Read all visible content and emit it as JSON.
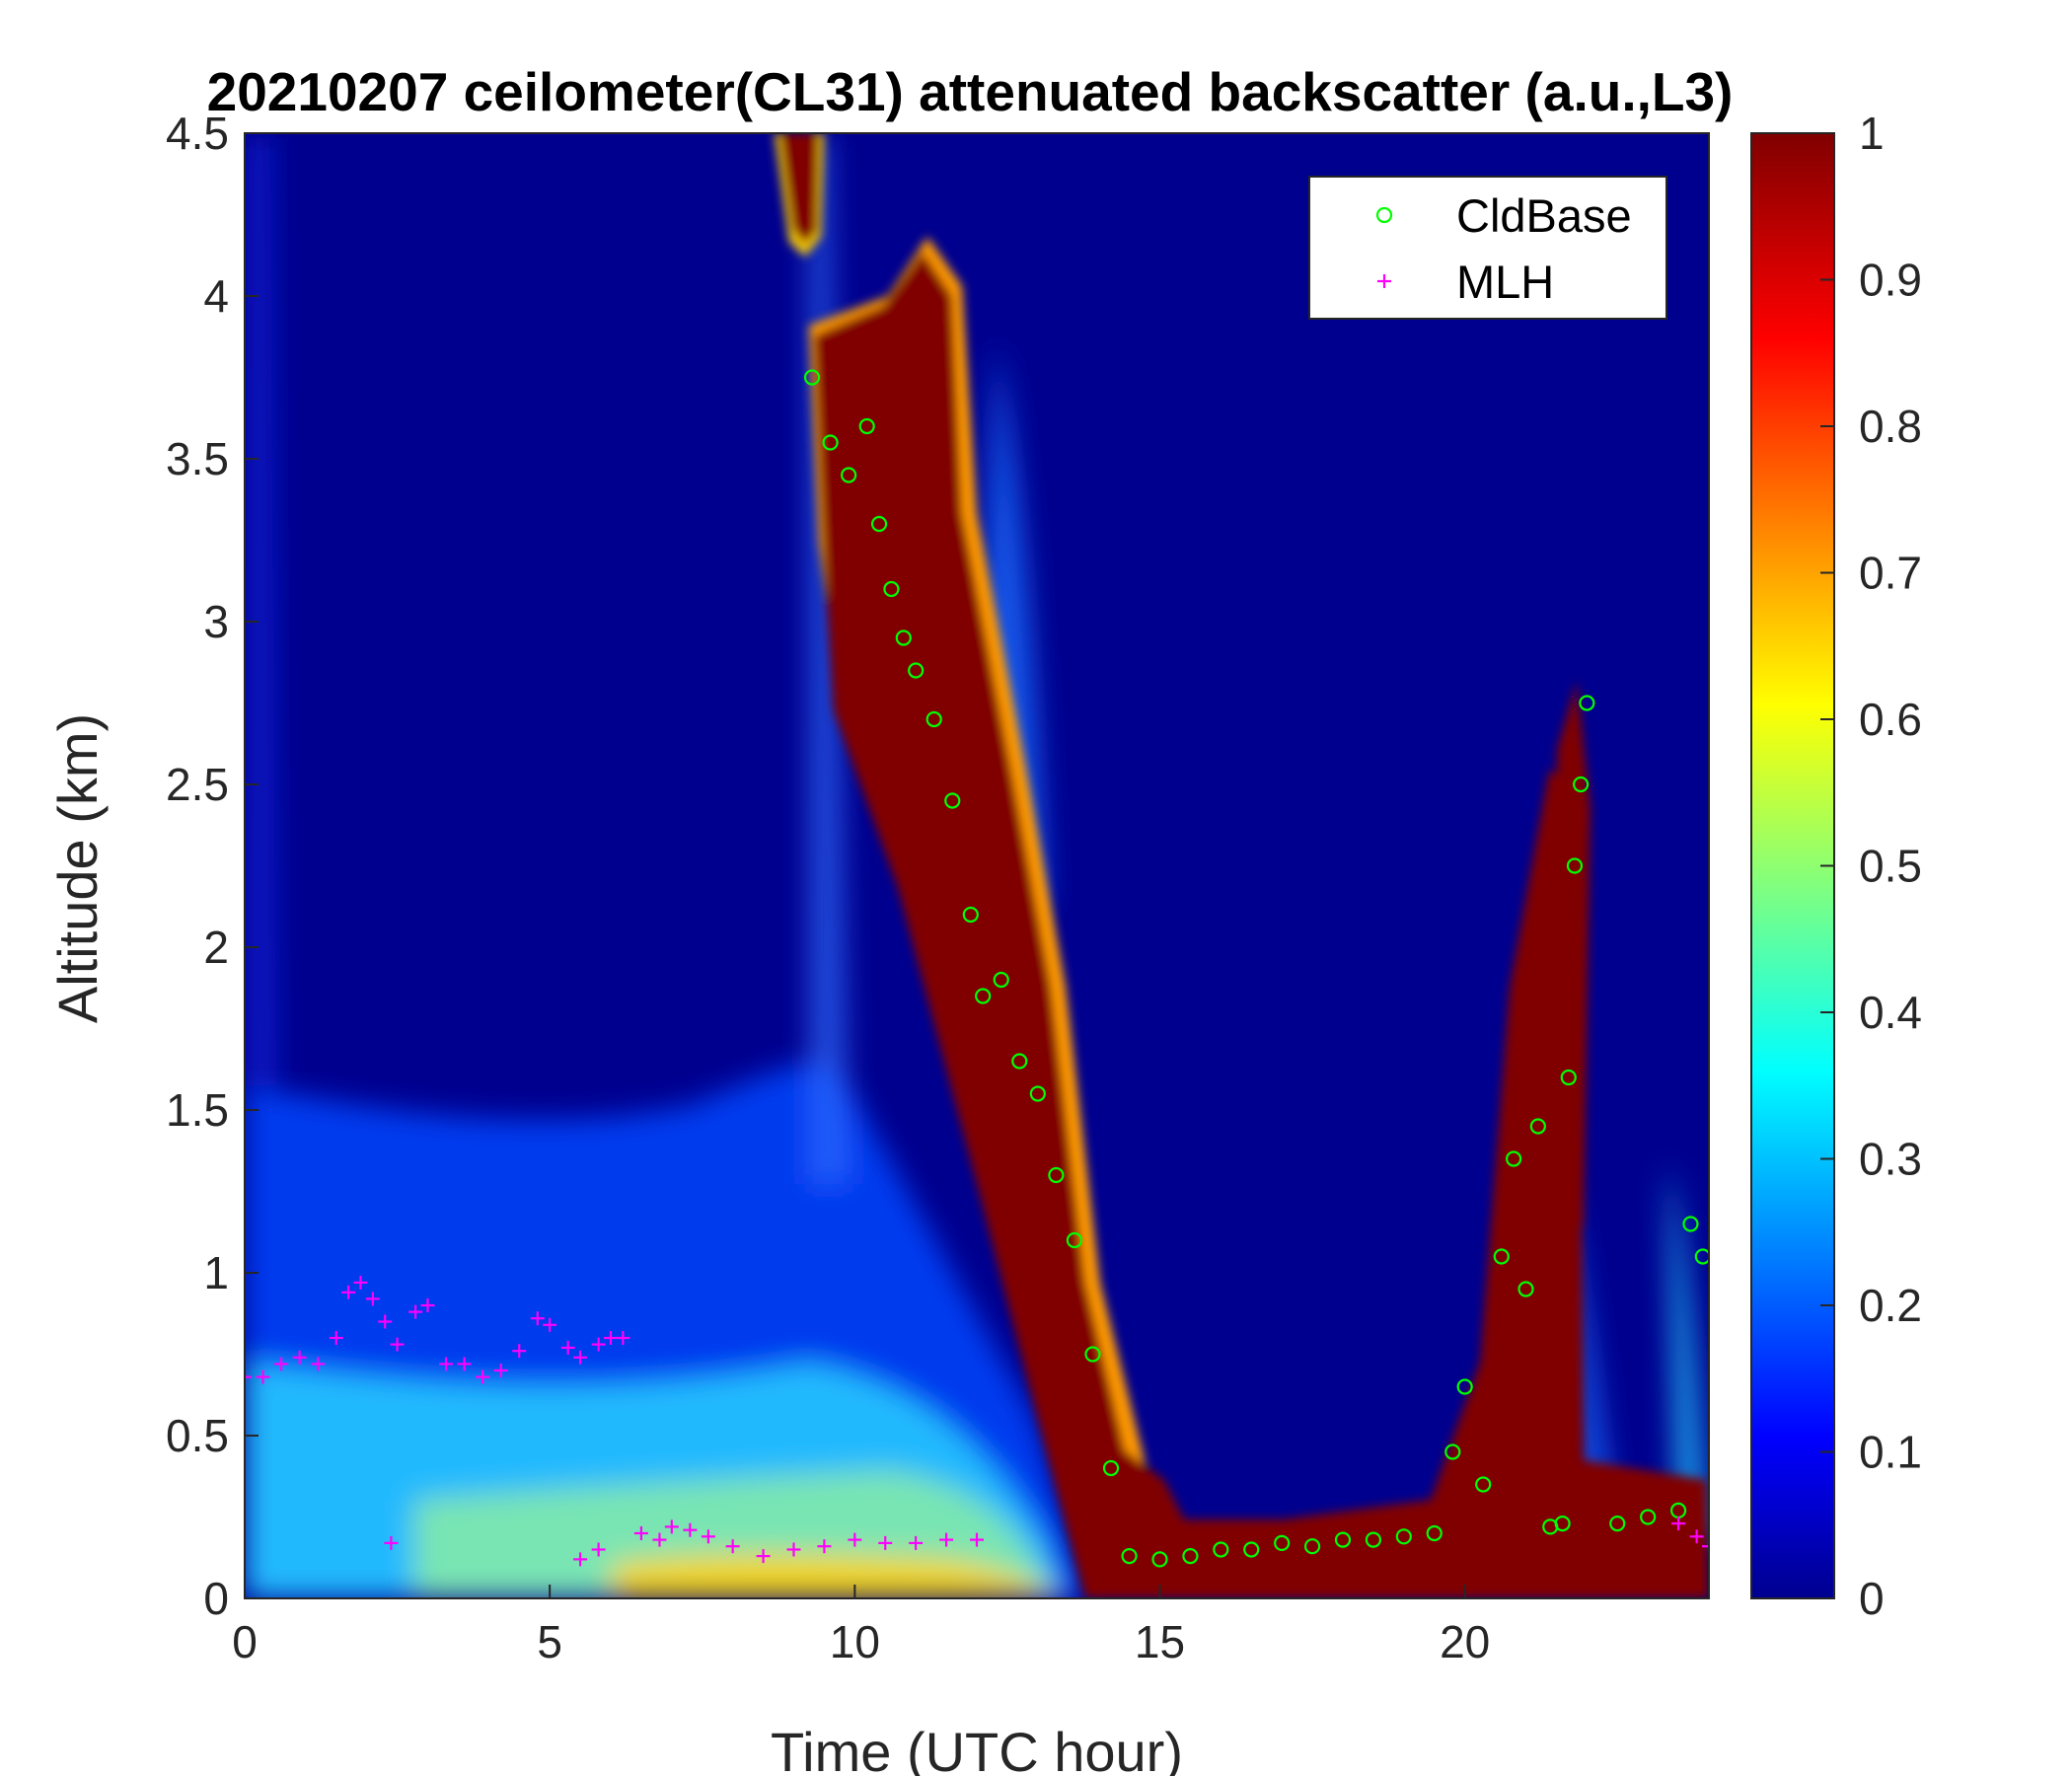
{
  "chart_data": {
    "type": "heatmap",
    "title": "20210207 ceilometer(CL31) attenuated backscatter (a.u.,L3)",
    "xlabel": "Time (UTC hour)",
    "ylabel": "Altitude (km)",
    "xlim": [
      0,
      24
    ],
    "ylim": [
      0,
      4.5
    ],
    "x_ticks": [
      "0",
      "5",
      "10",
      "15",
      "20"
    ],
    "y_ticks": [
      "0",
      "0.5",
      "1",
      "1.5",
      "2",
      "2.5",
      "3",
      "3.5",
      "4",
      "4.5"
    ],
    "colorbar": {
      "colormap": "jet",
      "range": [
        0,
        1
      ],
      "ticks": [
        "0",
        "0.1",
        "0.2",
        "0.3",
        "0.4",
        "0.5",
        "0.6",
        "0.7",
        "0.8",
        "0.9",
        "1"
      ]
    },
    "legend": {
      "location": "top-right",
      "entries": [
        "CldBase",
        "MLH"
      ]
    },
    "colors": {
      "CldBase": "#00ff00",
      "MLH": "#ff00ff",
      "background_min": "#00008f",
      "background_max": "#800000"
    },
    "backscatter_features": [
      {
        "name": "high cloud",
        "t_start": 9.0,
        "t_end": 9.8,
        "alt_top": 4.5,
        "alt_bottom": 4.1
      },
      {
        "name": "descending cloud layer",
        "t_start": 9.3,
        "t_end": 14.5,
        "alt_top": 3.9,
        "alt_bottom": 0.1
      },
      {
        "name": "low stratus",
        "t_start": 14.0,
        "t_end": 24.0,
        "alt_top": 0.3,
        "alt_bottom": 0.0
      },
      {
        "name": "convective cloud",
        "t_start": 21.5,
        "t_end": 22.3,
        "alt_top": 2.8,
        "alt_bottom": 0.2
      }
    ],
    "series": [
      {
        "name": "CldBase",
        "marker": "o",
        "x": [
          9.3,
          9.6,
          9.9,
          10.2,
          10.4,
          10.6,
          10.8,
          11.0,
          11.3,
          11.6,
          11.9,
          12.1,
          12.4,
          12.7,
          13.0,
          13.3,
          13.6,
          13.9,
          14.2,
          14.5,
          15.0,
          15.5,
          16.0,
          16.5,
          17.0,
          17.5,
          18.0,
          18.5,
          19.0,
          19.5,
          19.8,
          20.0,
          20.3,
          20.6,
          20.8,
          21.0,
          21.2,
          21.4,
          21.6,
          21.7,
          21.8,
          21.9,
          22.0,
          22.5,
          23.0,
          23.5,
          23.7,
          23.9
        ],
        "y": [
          3.75,
          3.55,
          3.45,
          3.6,
          3.3,
          3.1,
          2.95,
          2.85,
          2.7,
          2.45,
          2.1,
          1.85,
          1.9,
          1.65,
          1.55,
          1.3,
          1.1,
          0.75,
          0.4,
          0.13,
          0.12,
          0.13,
          0.15,
          0.15,
          0.17,
          0.16,
          0.18,
          0.18,
          0.19,
          0.2,
          0.45,
          0.65,
          0.35,
          1.05,
          1.35,
          0.95,
          1.45,
          0.22,
          0.23,
          1.6,
          2.25,
          2.5,
          2.75,
          0.23,
          0.25,
          0.27,
          1.15,
          1.05
        ]
      },
      {
        "name": "MLH",
        "marker": "+",
        "x": [
          0.0,
          0.3,
          0.6,
          0.9,
          1.2,
          1.5,
          1.7,
          1.9,
          2.1,
          2.3,
          2.5,
          2.8,
          3.0,
          3.3,
          3.6,
          3.9,
          4.2,
          4.5,
          4.8,
          5.0,
          5.3,
          5.5,
          5.8,
          6.0,
          6.2,
          2.4,
          5.5,
          5.8,
          6.5,
          6.8,
          7.0,
          7.3,
          7.6,
          8.0,
          8.5,
          9.0,
          9.5,
          10.0,
          10.5,
          11.0,
          11.5,
          12.0,
          23.5,
          23.8,
          24.0
        ],
        "y": [
          0.68,
          0.68,
          0.72,
          0.74,
          0.72,
          0.8,
          0.94,
          0.97,
          0.92,
          0.85,
          0.78,
          0.88,
          0.9,
          0.72,
          0.72,
          0.68,
          0.7,
          0.76,
          0.86,
          0.84,
          0.77,
          0.74,
          0.78,
          0.8,
          0.8,
          0.17,
          0.12,
          0.15,
          0.2,
          0.18,
          0.22,
          0.21,
          0.19,
          0.16,
          0.13,
          0.15,
          0.16,
          0.18,
          0.17,
          0.17,
          0.18,
          0.18,
          0.23,
          0.19,
          0.16
        ]
      }
    ]
  }
}
